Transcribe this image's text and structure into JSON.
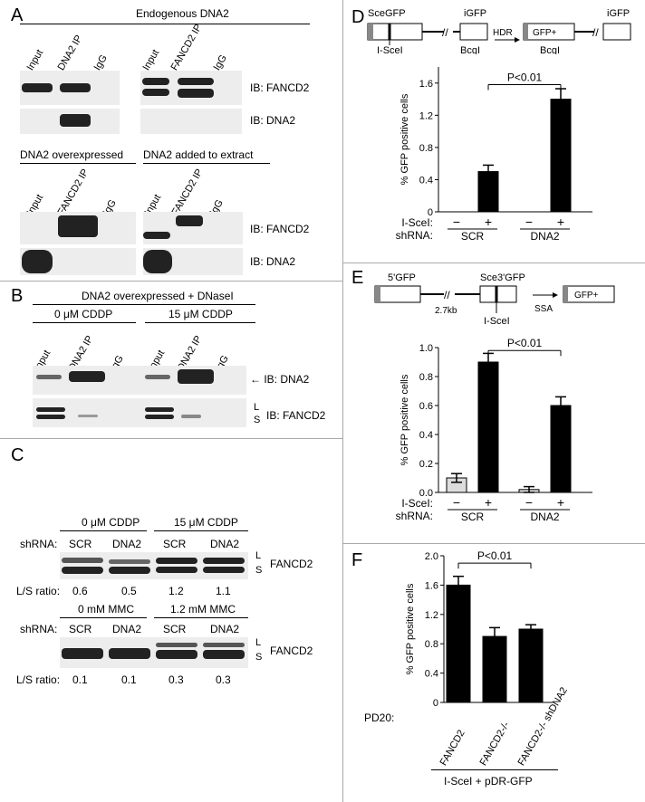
{
  "panelA": {
    "label": "A",
    "endogenous": "Endogenous DNA2",
    "lanes_left": [
      "Input",
      "DNA2 IP",
      "IgG"
    ],
    "lanes_right": [
      "Input",
      "FANCD2 IP",
      "IgG"
    ],
    "ib_fancd2": "IB: FANCD2",
    "ib_dna2": "IB: DNA2",
    "overexpressed": "DNA2 overexpressed",
    "added": "DNA2 added to extract",
    "lanes_b_left": [
      "Input",
      "FANCD2 IP",
      "IgG"
    ],
    "lanes_b_right": [
      "Input",
      "FANCD2 IP",
      "IgG"
    ]
  },
  "panelB": {
    "label": "B",
    "title": "DNA2 overexpressed + DNaseI",
    "cond1": "0 μM CDDP",
    "cond2": "15 μM CDDP",
    "lanes": [
      "Input",
      "DNA2 IP",
      "IgG",
      "Input",
      "DNA2 IP",
      "IgG"
    ],
    "ib_dna2": "IB: DNA2",
    "ib_fancd2": "IB: FANCD2",
    "L": "L",
    "S": "S"
  },
  "panelC": {
    "label": "C",
    "shrna": "shRNA:",
    "top": {
      "cond1": "0 μM CDDP",
      "cond2": "15 μM CDDP",
      "lanes": [
        "SCR",
        "DNA2",
        "SCR",
        "DNA2"
      ],
      "ratios": [
        "0.6",
        "0.5",
        "1.2",
        "1.1"
      ]
    },
    "bottom": {
      "cond1": "0 mM MMC",
      "cond2": "1.2 mM MMC",
      "lanes": [
        "SCR",
        "DNA2",
        "SCR",
        "DNA2"
      ],
      "ratios": [
        "0.1",
        "0.1",
        "0.3",
        "0.3"
      ]
    },
    "ratio_label": "L/S ratio:",
    "fancd2": "FANCD2",
    "L": "L",
    "S": "S"
  },
  "panelD": {
    "label": "D",
    "sce": "SceGFP",
    "igfp": "iGFP",
    "isce": "I-SceI",
    "bcg": "BcgI",
    "hdr": "HDR",
    "gfpplus": "GFP+",
    "bcg2": "BcgI",
    "igfp2": "iGFP"
  },
  "panelE": {
    "label": "E",
    "gfp5": "5'GFP",
    "sce3": "Sce3'GFP",
    "kb": "2.7kb",
    "isce": "I-SceI",
    "ssa": "SSA",
    "gfpplus": "GFP+"
  },
  "panelF": {
    "label": "F",
    "pd20": "PD20:",
    "footer": "I-SceI + pDR-GFP"
  },
  "chart_data": [
    {
      "type": "bar",
      "panel": "D",
      "ylabel": "% GFP positive cells",
      "ylim": [
        0,
        1.8
      ],
      "yticks": [
        "0",
        "0.4",
        "0.8",
        "1.2",
        "1.6"
      ],
      "categories": [
        "SCR −",
        "SCR +",
        "DNA2 −",
        "DNA2 +"
      ],
      "values": [
        0.0,
        0.5,
        0.0,
        1.4
      ],
      "errors": [
        0,
        0.08,
        0,
        0.13
      ],
      "isce_row": [
        "−",
        "+",
        "−",
        "+"
      ],
      "isce_label": "I-SceI:",
      "shrna_label": "shRNA:",
      "groups": [
        "SCR",
        "DNA2"
      ],
      "annotation": "P<0.01"
    },
    {
      "type": "bar",
      "panel": "E",
      "ylabel": "% GFP positive cells",
      "ylim": [
        0,
        1.0
      ],
      "yticks": [
        "0.0",
        "0.2",
        "0.4",
        "0.6",
        "0.8",
        "1.0"
      ],
      "categories": [
        "SCR −",
        "SCR +",
        "DNA2 −",
        "DNA2 +"
      ],
      "values": [
        0.1,
        0.9,
        0.02,
        0.6
      ],
      "errors": [
        0.03,
        0.06,
        0.02,
        0.06
      ],
      "isce_row": [
        "−",
        "+",
        "−",
        "+"
      ],
      "isce_label": "I-SceI:",
      "shrna_label": "shRNA:",
      "groups": [
        "SCR",
        "DNA2"
      ],
      "annotation": "P<0.01"
    },
    {
      "type": "bar",
      "panel": "F",
      "ylabel": "% GFP positive cells",
      "ylim": [
        0,
        2.0
      ],
      "yticks": [
        "0",
        "0.4",
        "0.8",
        "1.2",
        "1.6",
        "2.0"
      ],
      "categories": [
        "FANCD2",
        "FANCD2-/-",
        "FANCD2-/- shDNA2"
      ],
      "values": [
        1.6,
        0.9,
        1.0
      ],
      "errors": [
        0.12,
        0.12,
        0.06
      ],
      "annotation": "P<0.01"
    }
  ]
}
